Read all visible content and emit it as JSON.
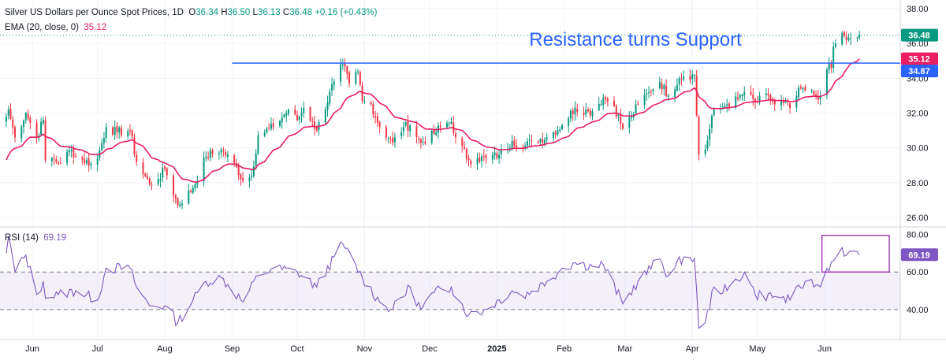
{
  "header": {
    "symbol": "Silver US Dollars per Ounce Spot Prices, 1D",
    "o_label": "O",
    "o": "36.34",
    "h_label": "H",
    "h": "36.50",
    "l_label": "L",
    "l": "36.13",
    "c_label": "C",
    "c": "36.48",
    "change": "+0.16 (+0.43%)",
    "ema_label": "EMA (20, close, 0)",
    "ema_value": "35.12",
    "rsi_label": "RSI (14)",
    "rsi_value": "69.19"
  },
  "annotation": "Resistance turns Support",
  "colors": {
    "up": "#089981",
    "down": "#f23645",
    "ema": "#e91e63",
    "rsi": "#7e57c2",
    "resistance": "#2962ff",
    "rsi_band": "#7e57c2",
    "grid": "#f0f3fa"
  },
  "chart_data": [
    {
      "type": "candlestick",
      "title": "Silver US Dollars per Ounce Spot Prices, 1D",
      "ylim": [
        25.5,
        38.5
      ],
      "y_ticks": [
        "26.00",
        "28.00",
        "30.00",
        "32.00",
        "34.00",
        "36.00",
        "38.00"
      ],
      "x_ticks": [
        "Jun",
        "Jul",
        "Aug",
        "Sep",
        "Oct",
        "Nov",
        "Dec",
        "2025",
        "Feb",
        "Mar",
        "Apr",
        "May",
        "Jun"
      ],
      "x_range": [
        "2024-05-20",
        "2025-06-30"
      ],
      "price_labels": {
        "last": "36.48",
        "ema": "35.12",
        "resistance": "34.87"
      },
      "resistance_level": 34.87,
      "resistance_from": "2024-09-01",
      "close_anchors": [
        [
          "2024-05-20",
          31.8
        ],
        [
          "2024-05-21",
          32.2
        ],
        [
          "2024-05-24",
          30.6
        ],
        [
          "2024-05-29",
          32.0
        ],
        [
          "2024-06-03",
          30.6
        ],
        [
          "2024-06-06",
          31.6
        ],
        [
          "2024-06-07",
          29.3
        ],
        [
          "2024-06-11",
          29.4
        ],
        [
          "2024-06-13",
          29.1
        ],
        [
          "2024-06-19",
          29.9
        ],
        [
          "2024-06-21",
          29.5
        ],
        [
          "2024-06-28",
          29.1
        ],
        [
          "2024-07-01",
          29.4
        ],
        [
          "2024-07-05",
          31.2
        ],
        [
          "2024-07-10",
          30.9
        ],
        [
          "2024-07-16",
          31.0
        ],
        [
          "2024-07-19",
          29.2
        ],
        [
          "2024-07-25",
          27.9
        ],
        [
          "2024-07-29",
          28.2
        ],
        [
          "2024-08-01",
          28.8
        ],
        [
          "2024-08-07",
          26.7
        ],
        [
          "2024-08-14",
          27.7
        ],
        [
          "2024-08-20",
          29.5
        ],
        [
          "2024-08-27",
          29.9
        ],
        [
          "2024-09-03",
          28.9
        ],
        [
          "2024-09-06",
          28.1
        ],
        [
          "2024-09-10",
          28.4
        ],
        [
          "2024-09-13",
          30.7
        ],
        [
          "2024-09-20",
          31.2
        ],
        [
          "2024-09-27",
          32.2
        ],
        [
          "2024-10-01",
          31.6
        ],
        [
          "2024-10-04",
          32.3
        ],
        [
          "2024-10-08",
          31.5
        ],
        [
          "2024-10-10",
          31.0
        ],
        [
          "2024-10-18",
          33.8
        ],
        [
          "2024-10-22",
          34.8
        ],
        [
          "2024-10-25",
          33.7
        ],
        [
          "2024-10-29",
          34.4
        ],
        [
          "2024-10-31",
          32.7
        ],
        [
          "2024-11-04",
          32.5
        ],
        [
          "2024-11-08",
          31.2
        ],
        [
          "2024-11-14",
          30.3
        ],
        [
          "2024-11-19",
          31.2
        ],
        [
          "2024-11-22",
          31.3
        ],
        [
          "2024-11-27",
          30.3
        ],
        [
          "2024-12-03",
          30.8
        ],
        [
          "2024-12-06",
          31.2
        ],
        [
          "2024-12-11",
          31.5
        ],
        [
          "2024-12-13",
          30.6
        ],
        [
          "2024-12-19",
          29.3
        ],
        [
          "2024-12-23",
          29.4
        ],
        [
          "2024-12-27",
          29.4
        ],
        [
          "2025-01-02",
          29.6
        ],
        [
          "2025-01-08",
          30.4
        ],
        [
          "2025-01-13",
          30.0
        ],
        [
          "2025-01-17",
          30.4
        ],
        [
          "2025-01-24",
          30.6
        ],
        [
          "2025-01-31",
          31.3
        ],
        [
          "2025-02-06",
          32.3
        ],
        [
          "2025-02-12",
          32.1
        ],
        [
          "2025-02-14",
          32.1
        ],
        [
          "2025-02-19",
          32.9
        ],
        [
          "2025-02-24",
          32.4
        ],
        [
          "2025-02-28",
          31.1
        ],
        [
          "2025-03-04",
          31.8
        ],
        [
          "2025-03-07",
          32.5
        ],
        [
          "2025-03-12",
          33.2
        ],
        [
          "2025-03-17",
          33.8
        ],
        [
          "2025-03-21",
          33.0
        ],
        [
          "2025-03-26",
          34.0
        ],
        [
          "2025-03-28",
          34.1
        ],
        [
          "2025-04-02",
          34.2
        ],
        [
          "2025-04-04",
          29.6
        ],
        [
          "2025-04-07",
          29.9
        ],
        [
          "2025-04-11",
          32.2
        ],
        [
          "2025-04-14",
          32.3
        ],
        [
          "2025-04-17",
          32.5
        ],
        [
          "2025-04-22",
          32.8
        ],
        [
          "2025-04-25",
          33.2
        ],
        [
          "2025-04-30",
          32.6
        ],
        [
          "2025-05-06",
          33.0
        ],
        [
          "2025-05-09",
          32.5
        ],
        [
          "2025-05-13",
          32.6
        ],
        [
          "2025-05-16",
          32.3
        ],
        [
          "2025-05-21",
          33.4
        ],
        [
          "2025-05-23",
          33.3
        ],
        [
          "2025-05-28",
          33.0
        ],
        [
          "2025-05-30",
          33.0
        ],
        [
          "2025-06-02",
          34.5
        ],
        [
          "2025-06-04",
          34.6
        ],
        [
          "2025-06-05",
          35.8
        ],
        [
          "2025-06-06",
          36.0
        ],
        [
          "2025-06-09",
          36.6
        ],
        [
          "2025-06-11",
          36.2
        ],
        [
          "2025-06-13",
          36.3
        ],
        [
          "2025-06-16",
          36.35
        ],
        [
          "2025-06-17",
          36.48
        ]
      ]
    },
    {
      "type": "line",
      "title": "RSI (14)",
      "value": "69.19",
      "ylim": [
        24,
        84
      ],
      "y_ticks": [
        "40.00",
        "60.00",
        "80.00"
      ],
      "band": [
        40,
        60
      ],
      "highlight_from": "2025-05-30",
      "rsi_anchors": [
        [
          "2024-05-20",
          70
        ],
        [
          "2024-05-21",
          79
        ],
        [
          "2024-05-24",
          60
        ],
        [
          "2024-05-29",
          69
        ],
        [
          "2024-06-03",
          48
        ],
        [
          "2024-06-06",
          55
        ],
        [
          "2024-06-07",
          46
        ],
        [
          "2024-06-13",
          48
        ],
        [
          "2024-06-21",
          50
        ],
        [
          "2024-07-01",
          45
        ],
        [
          "2024-07-05",
          62
        ],
        [
          "2024-07-16",
          62
        ],
        [
          "2024-07-19",
          52
        ],
        [
          "2024-07-25",
          42
        ],
        [
          "2024-08-01",
          42
        ],
        [
          "2024-08-07",
          33
        ],
        [
          "2024-08-14",
          45
        ],
        [
          "2024-08-20",
          55
        ],
        [
          "2024-08-27",
          57
        ],
        [
          "2024-09-06",
          44
        ],
        [
          "2024-09-13",
          58
        ],
        [
          "2024-09-20",
          62
        ],
        [
          "2024-10-01",
          60
        ],
        [
          "2024-10-10",
          52
        ],
        [
          "2024-10-18",
          68
        ],
        [
          "2024-10-22",
          75
        ],
        [
          "2024-10-31",
          57
        ],
        [
          "2024-11-08",
          44
        ],
        [
          "2024-11-14",
          40
        ],
        [
          "2024-11-22",
          52
        ],
        [
          "2024-11-27",
          40
        ],
        [
          "2024-12-03",
          49
        ],
        [
          "2024-12-11",
          52
        ],
        [
          "2024-12-19",
          37
        ],
        [
          "2024-12-27",
          40
        ],
        [
          "2025-01-08",
          50
        ],
        [
          "2025-01-13",
          47
        ],
        [
          "2025-01-24",
          55
        ],
        [
          "2025-01-31",
          62
        ],
        [
          "2025-02-06",
          65
        ],
        [
          "2025-02-14",
          63
        ],
        [
          "2025-02-19",
          64
        ],
        [
          "2025-02-28",
          43
        ],
        [
          "2025-03-07",
          55
        ],
        [
          "2025-03-17",
          67
        ],
        [
          "2025-03-21",
          58
        ],
        [
          "2025-03-28",
          68
        ],
        [
          "2025-04-02",
          67
        ],
        [
          "2025-04-04",
          30
        ],
        [
          "2025-04-07",
          33
        ],
        [
          "2025-04-11",
          52
        ],
        [
          "2025-04-17",
          50
        ],
        [
          "2025-04-25",
          60
        ],
        [
          "2025-04-30",
          48
        ],
        [
          "2025-05-09",
          47
        ],
        [
          "2025-05-16",
          45
        ],
        [
          "2025-05-23",
          55
        ],
        [
          "2025-05-30",
          52
        ],
        [
          "2025-06-02",
          62
        ],
        [
          "2025-06-05",
          66
        ],
        [
          "2025-06-09",
          73
        ],
        [
          "2025-06-11",
          69
        ],
        [
          "2025-06-17",
          69.19
        ]
      ]
    }
  ]
}
